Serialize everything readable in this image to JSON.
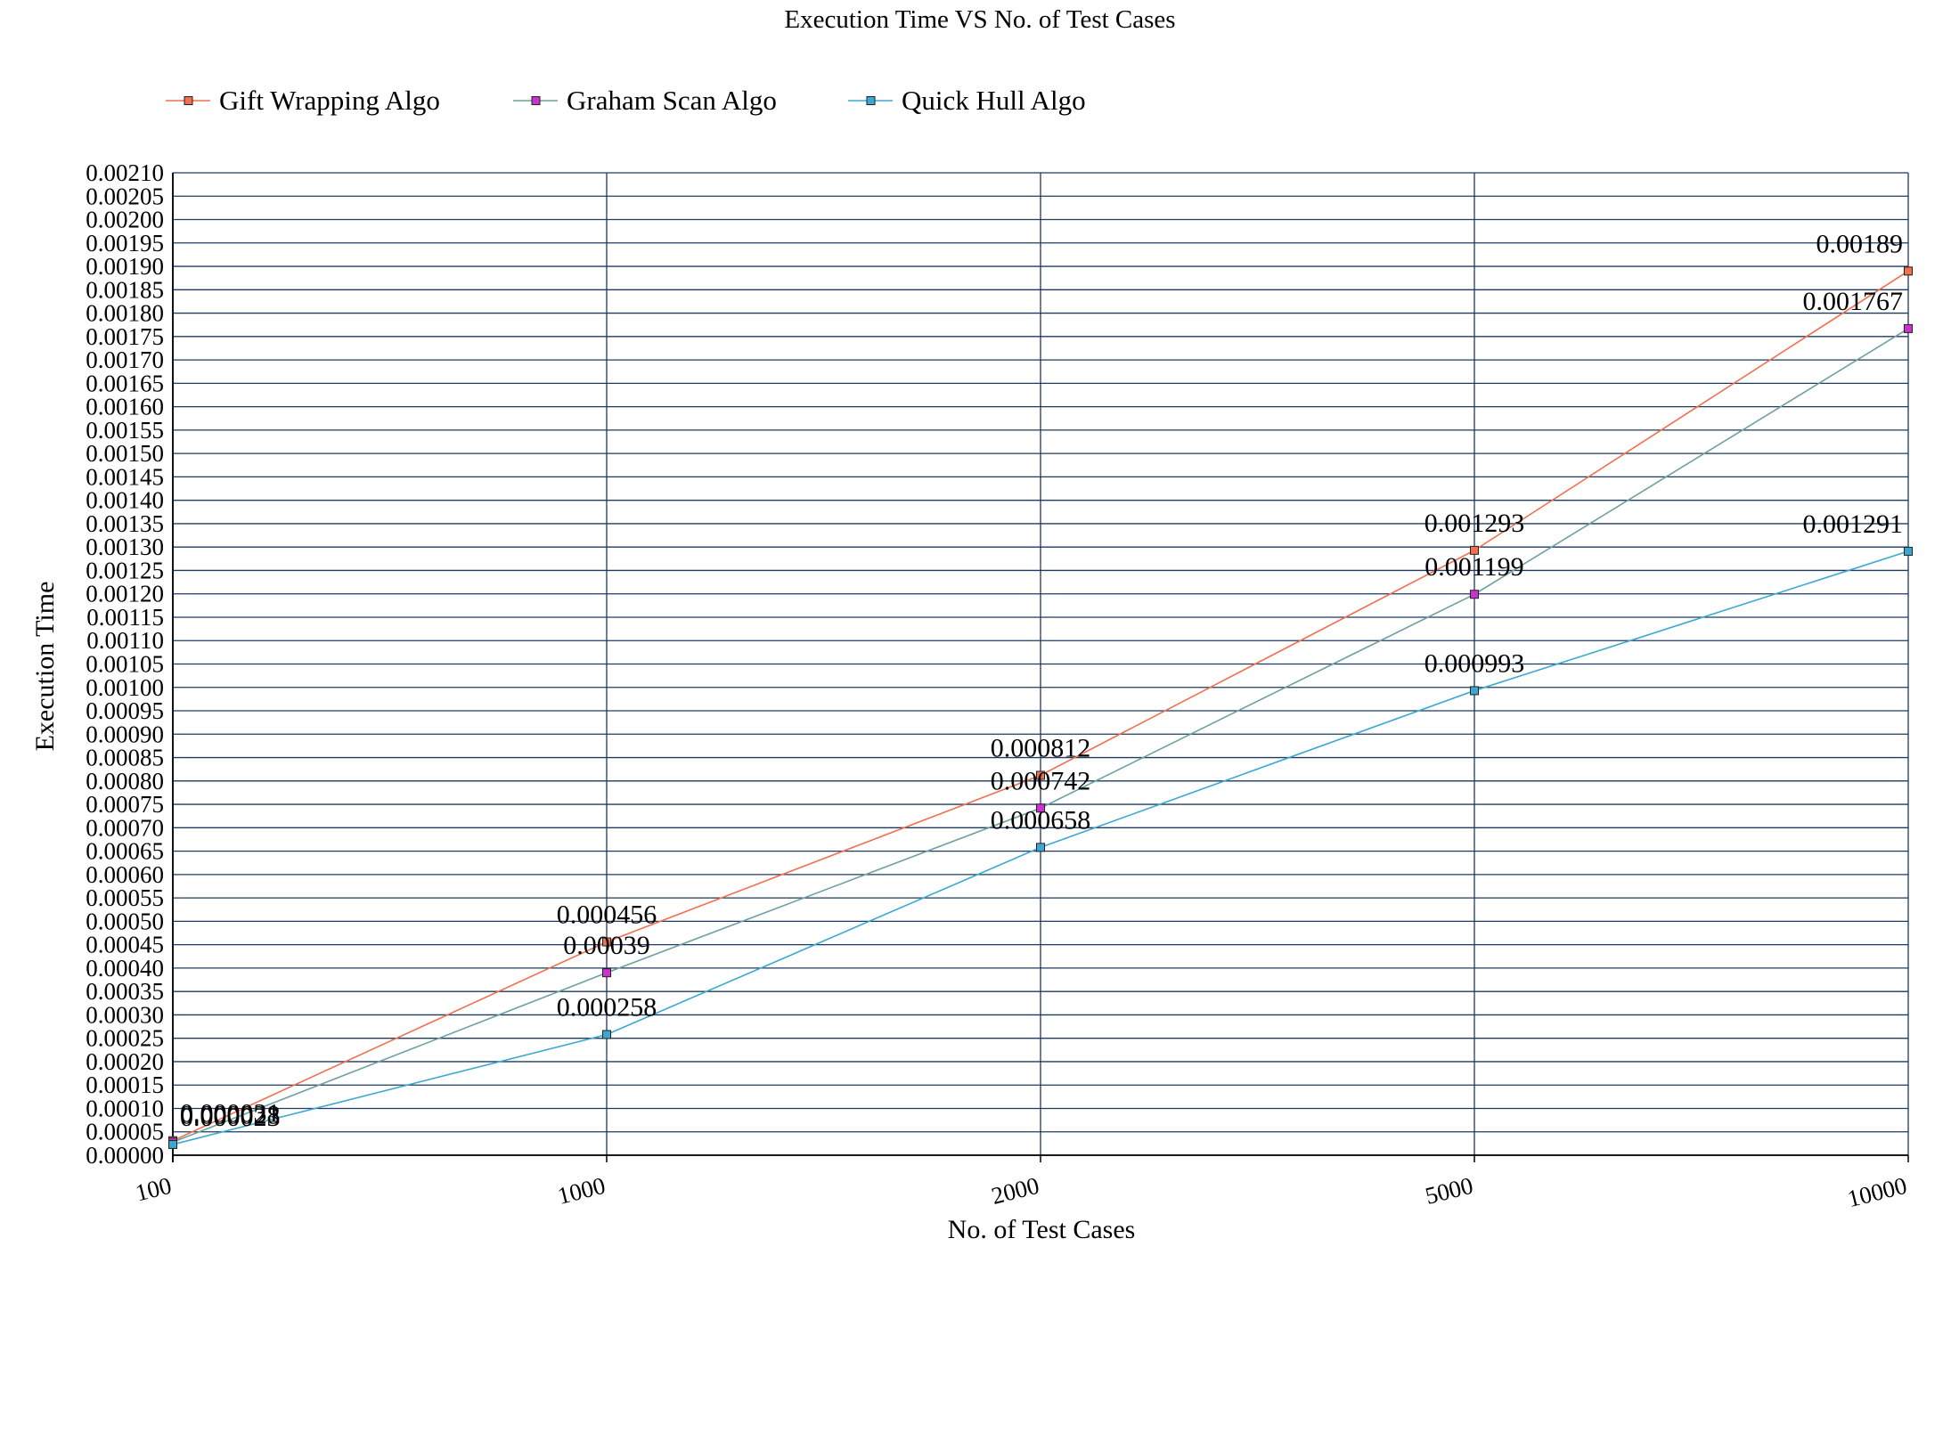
{
  "chart_data": {
    "type": "line",
    "title": "Execution Time VS No. of Test Cases",
    "xlabel": "No. of Test Cases",
    "ylabel": "Execution Time",
    "categories": [
      "100",
      "1000",
      "2000",
      "5000",
      "10000"
    ],
    "ylim": [
      0,
      0.0021
    ],
    "ytick_step": 5e-05,
    "ytick_labels": [
      "0.00000",
      "0.00005",
      "0.00010",
      "0.00015",
      "0.00020",
      "0.00025",
      "0.00030",
      "0.00035",
      "0.00040",
      "0.00045",
      "0.00050",
      "0.00055",
      "0.00060",
      "0.00065",
      "0.00070",
      "0.00075",
      "0.00080",
      "0.00085",
      "0.00090",
      "0.00095",
      "0.00100",
      "0.00105",
      "0.00110",
      "0.00115",
      "0.00120",
      "0.00125",
      "0.00130",
      "0.00135",
      "0.00140",
      "0.00145",
      "0.00150",
      "0.00155",
      "0.00160",
      "0.00165",
      "0.00170",
      "0.00175",
      "0.00180",
      "0.00185",
      "0.00190",
      "0.00195",
      "0.00200",
      "0.00205",
      "0.00210"
    ],
    "grid": true,
    "legend_position": "top-left",
    "series": [
      {
        "name": "Gift Wrapping Algo",
        "color": "#f07050",
        "values": [
          3.1e-05,
          0.000456,
          0.000812,
          0.001293,
          0.00189
        ],
        "labels": [
          "0.000031",
          "0.000456",
          "0.000812",
          "0.001293",
          "0.00189"
        ]
      },
      {
        "name": "Graham Scan Algo",
        "color": "#6fa0a0",
        "marker_color": "#cc33cc",
        "values": [
          2.8e-05,
          0.00039,
          0.000742,
          0.001199,
          0.001767
        ],
        "labels": [
          "0.000028",
          "0.00039",
          "0.000742",
          "0.001199",
          "0.001767"
        ]
      },
      {
        "name": "Quick Hull Algo",
        "color": "#3aa8d0",
        "values": [
          2.3e-05,
          0.000258,
          0.000658,
          0.000993,
          0.001291
        ],
        "labels": [
          "0.000023",
          "0.000258",
          "0.000658",
          "0.000993",
          "0.001291"
        ]
      }
    ]
  }
}
